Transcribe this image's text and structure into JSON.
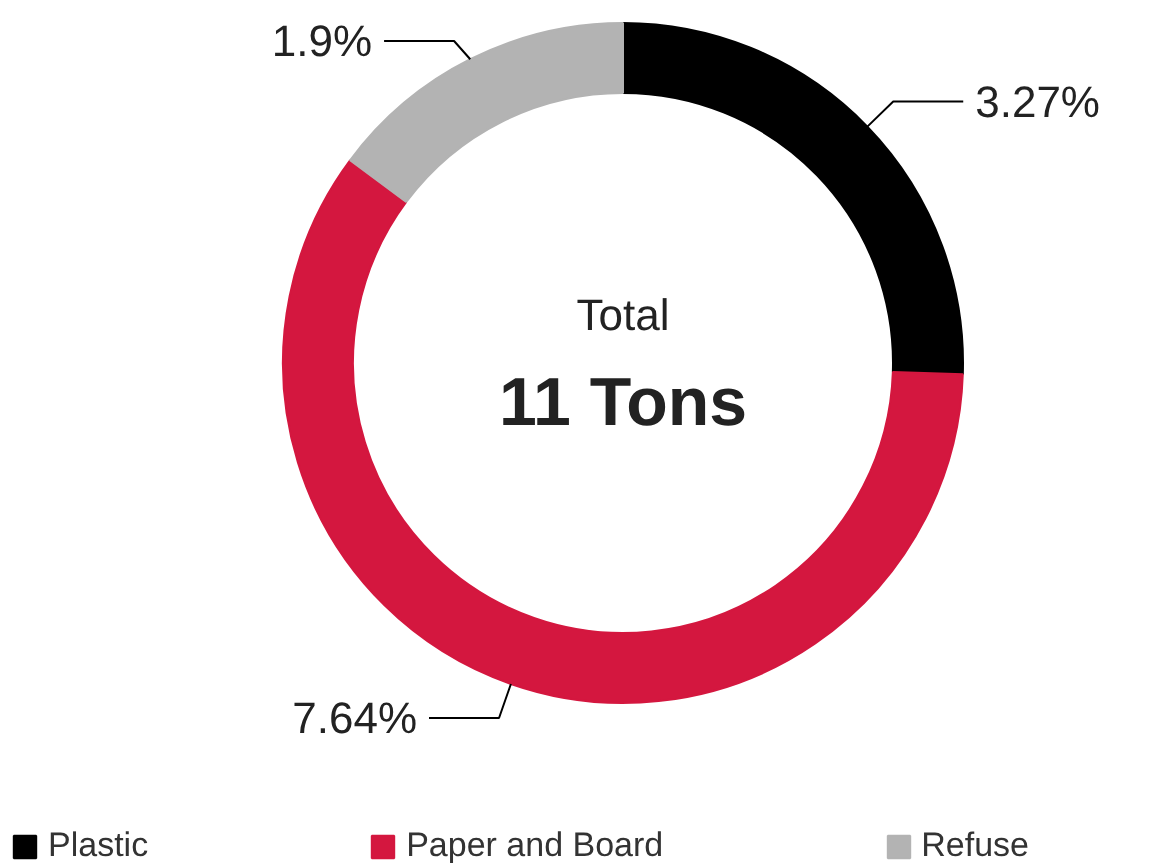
{
  "chart_data": {
    "type": "donut",
    "categories": [
      "Plastic",
      "Paper and Board",
      "Refuse"
    ],
    "values": [
      3.27,
      7.64,
      1.9
    ],
    "colors": [
      "#000000",
      "#d4173f",
      "#b3b3b3"
    ],
    "value_labels": [
      "3.27%",
      "7.64%",
      "1.9%"
    ],
    "annotations": [
      "Total",
      "11 Tons"
    ],
    "legend": "bottom"
  }
}
